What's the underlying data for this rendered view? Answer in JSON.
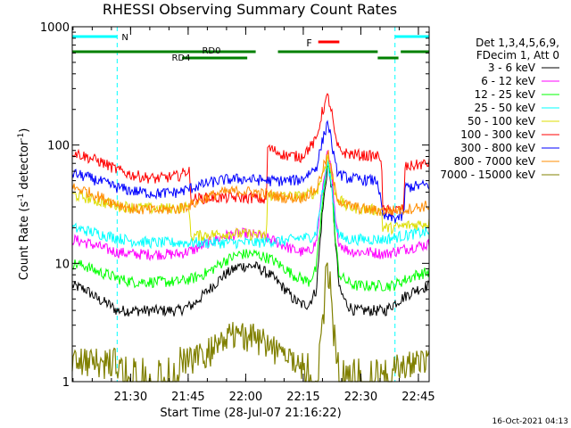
{
  "chart_data": {
    "type": "line",
    "title": "RHESSI Observing Summary Count Rates",
    "xlabel": "Start Time (28-Jul-07 21:16:22)",
    "ylabel_main": "Count Rate (s",
    "ylabel_sup1": "-1",
    "ylabel_mid": " detector",
    "ylabel_sup2": "-1",
    "ylabel_end": ")",
    "yscale": "log",
    "ylim": [
      1,
      1000
    ],
    "xlim_minutes": [
      -1.6,
      91.4
    ],
    "y_ticks": [
      {
        "v": 1,
        "label": "1"
      },
      {
        "v": 10,
        "label": "10"
      },
      {
        "v": 100,
        "label": "100"
      },
      {
        "v": 1000,
        "label": "1000"
      }
    ],
    "x_ticks": [
      {
        "m": 13.6,
        "label": "21:30"
      },
      {
        "m": 28.6,
        "label": "21:45"
      },
      {
        "m": 43.6,
        "label": "22:00"
      },
      {
        "m": 58.6,
        "label": "22:15"
      },
      {
        "m": 73.6,
        "label": "22:30"
      },
      {
        "m": 88.6,
        "label": "22:45"
      }
    ],
    "legend_header": [
      "Det 1,3,4,5,6,9,",
      "FDecim 1, Att 0"
    ],
    "legend_placement": "right",
    "timestamp": "16-Oct-2021 04:13",
    "colors": {
      "night": "#00ffff",
      "rd": "#008000",
      "flare": "#ff0000",
      "bg": "#ffffff",
      "axes": "#000000"
    },
    "annotations": {
      "night_label": "N",
      "flare_label": "F",
      "rd0_label": "RD0",
      "rd4_label": "RD4"
    },
    "night_intervals_min": [
      [
        -1.6,
        10.1
      ],
      [
        82.5,
        91.4
      ]
    ],
    "flare_interval_min": [
      62.5,
      68.0
    ],
    "rd_upper_min": [
      [
        -1.6,
        46.2
      ],
      [
        52.0,
        78.0
      ],
      [
        84.0,
        91.4
      ]
    ],
    "rd_lower_min": [
      [
        27.0,
        44.0
      ],
      [
        78.0,
        83.4
      ]
    ],
    "series": [
      {
        "name": "3 - 6 keV",
        "color": "#000000",
        "x": [
          -1.6,
          2,
          5,
          8,
          10,
          14,
          20,
          26,
          30,
          34,
          38,
          42,
          46,
          50,
          54,
          56,
          58,
          60,
          62,
          63.5,
          65,
          66,
          67,
          68,
          70,
          72,
          76,
          80,
          82,
          84,
          86,
          88,
          91.4
        ],
        "y": [
          6.5,
          6,
          5,
          4.5,
          4,
          4,
          4,
          4,
          4.5,
          6,
          8,
          9.5,
          9.5,
          8,
          6,
          5,
          4.5,
          4.5,
          6,
          25,
          70,
          45,
          15,
          6,
          4.5,
          4,
          4,
          4,
          4.5,
          5,
          5.5,
          6,
          6.5
        ]
      },
      {
        "name": "6 - 12 keV",
        "color": "#ff00ff",
        "x": [
          -1.6,
          2,
          5,
          8,
          10,
          14,
          20,
          26,
          30,
          34,
          38,
          42,
          46,
          50,
          54,
          56,
          58,
          60,
          62,
          63.5,
          65,
          66,
          67,
          68,
          70,
          72,
          76,
          80,
          82,
          84,
          86,
          88,
          91.4
        ],
        "y": [
          16,
          15,
          14,
          13,
          12.5,
          12,
          12,
          12,
          13,
          15,
          17,
          18,
          17.5,
          16,
          14,
          13,
          12.5,
          12.5,
          15,
          40,
          90,
          55,
          22,
          15,
          13,
          12.5,
          12.5,
          12,
          12.5,
          13,
          13.5,
          14,
          14.5
        ]
      },
      {
        "name": "12 - 25 keV",
        "color": "#00ff00",
        "x": [
          -1.6,
          2,
          5,
          8,
          10,
          14,
          20,
          26,
          30,
          34,
          38,
          42,
          46,
          50,
          54,
          56,
          58,
          60,
          62,
          63.5,
          65,
          66,
          67,
          68,
          70,
          72,
          76,
          80,
          82,
          84,
          86,
          88,
          91.4
        ],
        "y": [
          10,
          9.5,
          8.5,
          8,
          7.5,
          7,
          7,
          7,
          7.5,
          8.5,
          10.5,
          12,
          12,
          11,
          9,
          8,
          7.5,
          7,
          9,
          30,
          78,
          45,
          15,
          8,
          7,
          6.5,
          6.5,
          6.5,
          6.5,
          7,
          7.5,
          8,
          8.5
        ]
      },
      {
        "name": "25 - 50 keV",
        "color": "#00ffff",
        "x": [
          -1.6,
          2,
          5,
          8,
          10,
          14,
          20,
          26,
          30,
          34,
          38,
          42,
          46,
          50,
          54,
          56,
          58,
          60,
          62,
          63.5,
          65,
          66,
          67,
          68,
          70,
          72,
          76,
          80,
          82,
          84,
          86,
          88,
          91.4
        ],
        "y": [
          20,
          19,
          18,
          17,
          16.5,
          15.5,
          15,
          15,
          15,
          15,
          15,
          15,
          15,
          15.5,
          15.5,
          16,
          16.5,
          16.5,
          18,
          38,
          72,
          45,
          22,
          17,
          16,
          16,
          16,
          16,
          16.5,
          17,
          17.5,
          18,
          18.5
        ]
      },
      {
        "name": "50 - 100 keV",
        "color": "#dddd00",
        "x": [
          -1.6,
          2,
          6,
          10,
          14,
          20,
          26,
          28.9,
          29.2,
          34,
          40,
          46,
          49,
          49.3,
          54,
          58,
          62,
          63.5,
          65,
          66,
          67,
          68,
          70,
          74,
          79,
          79.3,
          82,
          86,
          91.4
        ],
        "y": [
          38,
          36,
          33,
          31,
          30,
          29,
          29.5,
          30,
          17,
          17.5,
          18,
          17.5,
          17,
          38,
          37,
          37,
          40,
          55,
          80,
          55,
          38,
          35,
          30,
          29,
          28,
          20,
          20,
          21,
          22
        ]
      },
      {
        "name": "100 - 300 keV",
        "color": "#ff0000",
        "x": [
          -1.6,
          2,
          6,
          10,
          14,
          20,
          26,
          28.9,
          29.2,
          34,
          40,
          46,
          49,
          49.3,
          54,
          58,
          62,
          63.5,
          65,
          66,
          67,
          68,
          70,
          74,
          79,
          79.3,
          82,
          84.8,
          85.1,
          88,
          91.4
        ],
        "y": [
          88,
          80,
          72,
          62,
          56,
          52,
          55,
          62,
          35,
          36,
          36,
          36,
          34,
          95,
          82,
          80,
          110,
          190,
          260,
          190,
          110,
          90,
          85,
          82,
          80,
          28,
          28,
          29,
          65,
          68,
          70
        ]
      },
      {
        "name": "300 - 800 keV",
        "color": "#0000ff",
        "x": [
          -1.6,
          2,
          6,
          10,
          14,
          20,
          26,
          30,
          34,
          38,
          42,
          46,
          50,
          54,
          58,
          62,
          63.5,
          65,
          66,
          67,
          68,
          70,
          74,
          78,
          79.3,
          82,
          84.8,
          85.1,
          88,
          91.4
        ],
        "y": [
          58,
          54,
          49,
          44,
          41,
          39,
          40,
          44,
          48,
          51,
          52,
          51,
          50,
          50,
          51,
          65,
          105,
          160,
          105,
          65,
          57,
          53,
          51,
          50,
          25,
          24,
          25,
          44,
          45,
          46
        ]
      },
      {
        "name": "800 - 7000 keV",
        "color": "#ff8c00",
        "x": [
          -1.6,
          2,
          6,
          10,
          14,
          20,
          26,
          30,
          34,
          38,
          42,
          46,
          50,
          54,
          58,
          62,
          63.5,
          65,
          66,
          67,
          68,
          70,
          74,
          78,
          82,
          86,
          91.4
        ],
        "y": [
          44,
          41,
          36,
          32,
          29,
          28,
          29,
          32,
          37,
          40,
          41,
          40,
          38,
          36,
          36,
          42,
          60,
          85,
          60,
          40,
          34,
          31,
          29,
          28,
          28,
          29,
          31
        ]
      },
      {
        "name": "7000 - 15000 keV",
        "color": "#808000",
        "x": [
          -1.6,
          10,
          14,
          20,
          26,
          27,
          30,
          34,
          38,
          40,
          46,
          50,
          54,
          58,
          60,
          62,
          63,
          64,
          64.5,
          65,
          65.5,
          66,
          67,
          68,
          70,
          74,
          78,
          82,
          86,
          91.4
        ],
        "y": [
          1.5,
          1.5,
          1,
          1,
          1,
          1.5,
          1.6,
          1.8,
          2.2,
          2.5,
          2.4,
          2,
          1.6,
          1.4,
          1.2,
          1,
          2,
          4,
          8,
          9,
          8,
          4,
          2,
          1,
          1,
          1,
          1,
          1.3,
          1.4,
          1.5
        ]
      }
    ]
  }
}
